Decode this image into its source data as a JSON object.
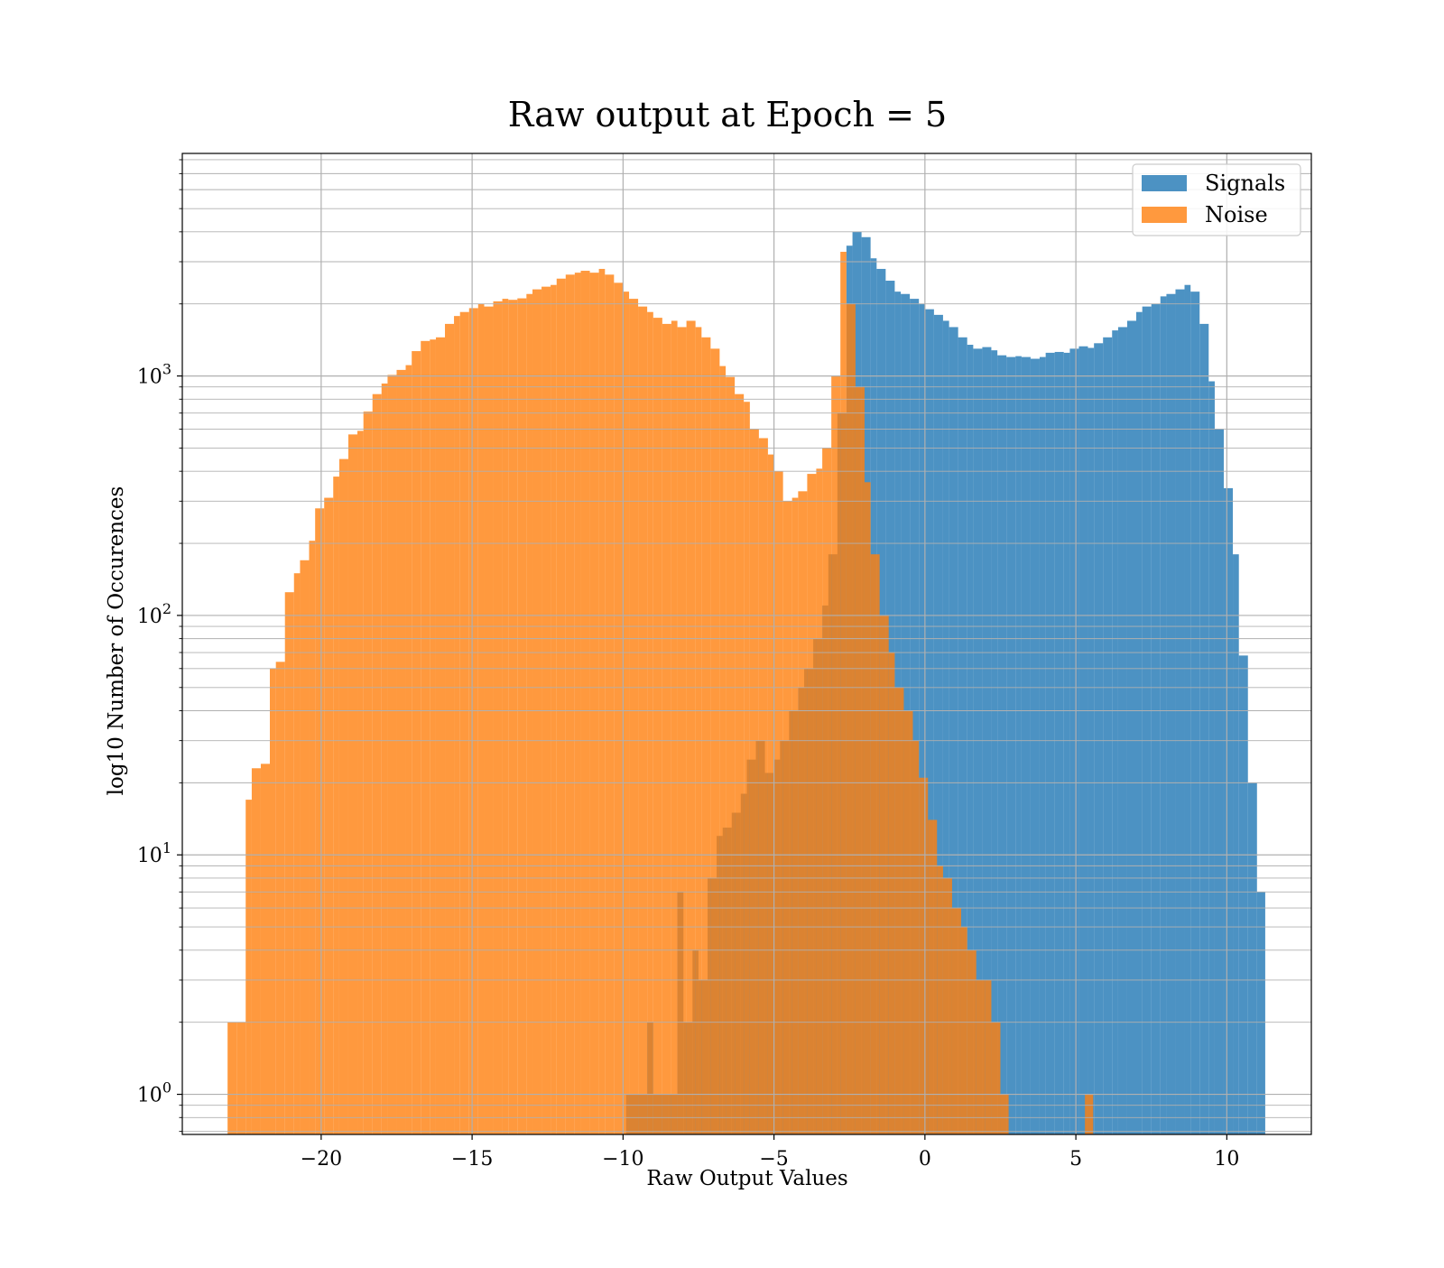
{
  "chart_data": {
    "type": "histogram",
    "title": "Raw output at Epoch = 5",
    "xlabel": "Raw Output Values",
    "ylabel": "log10 Number of Occurences",
    "xlim": [
      -24.6,
      12.8
    ],
    "ylim": [
      0.68,
      8500
    ],
    "yscale": "log",
    "grid": true,
    "grid_minor_y": true,
    "legend_position": "top-right",
    "x_ticks": [
      {
        "value": -20,
        "label": "−20"
      },
      {
        "value": -15,
        "label": "−15"
      },
      {
        "value": -10,
        "label": "−10"
      },
      {
        "value": -5,
        "label": "−5"
      },
      {
        "value": 0,
        "label": "0"
      },
      {
        "value": 5,
        "label": "5"
      },
      {
        "value": 10,
        "label": "10"
      }
    ],
    "y_ticks": [
      {
        "value": 1,
        "base": "10",
        "exp": "0"
      },
      {
        "value": 10,
        "base": "10",
        "exp": "1"
      },
      {
        "value": 100,
        "base": "10",
        "exp": "2"
      },
      {
        "value": 1000,
        "base": "10",
        "exp": "3"
      }
    ],
    "series": [
      {
        "name": "Signals",
        "color": "#1f77b4",
        "opacity": 0.8,
        "bins": [
          [
            -9.9,
            1
          ],
          [
            -9.5,
            1
          ],
          [
            -9.2,
            2
          ],
          [
            -9.0,
            1
          ],
          [
            -8.7,
            1
          ],
          [
            -8.5,
            1
          ],
          [
            -8.2,
            7
          ],
          [
            -8.0,
            2
          ],
          [
            -7.7,
            4
          ],
          [
            -7.5,
            3
          ],
          [
            -7.2,
            8
          ],
          [
            -6.9,
            12
          ],
          [
            -6.7,
            13
          ],
          [
            -6.4,
            15
          ],
          [
            -6.1,
            18
          ],
          [
            -5.9,
            25
          ],
          [
            -5.6,
            30
          ],
          [
            -5.3,
            22
          ],
          [
            -5.0,
            25
          ],
          [
            -4.8,
            30
          ],
          [
            -4.5,
            40
          ],
          [
            -4.2,
            50
          ],
          [
            -4.0,
            60
          ],
          [
            -3.7,
            80
          ],
          [
            -3.4,
            110
          ],
          [
            -3.2,
            180
          ],
          [
            -2.9,
            700
          ],
          [
            -2.6,
            3500
          ],
          [
            -2.4,
            4000
          ],
          [
            -2.1,
            3800
          ],
          [
            -1.8,
            3100
          ],
          [
            -1.6,
            2800
          ],
          [
            -1.3,
            2500
          ],
          [
            -1.0,
            2250
          ],
          [
            -0.8,
            2200
          ],
          [
            -0.5,
            2100
          ],
          [
            -0.2,
            2000
          ],
          [
            0.0,
            1900
          ],
          [
            0.3,
            1800
          ],
          [
            0.6,
            1700
          ],
          [
            0.8,
            1600
          ],
          [
            1.1,
            1450
          ],
          [
            1.4,
            1350
          ],
          [
            1.6,
            1300
          ],
          [
            1.9,
            1320
          ],
          [
            2.2,
            1280
          ],
          [
            2.4,
            1220
          ],
          [
            2.7,
            1200
          ],
          [
            3.0,
            1210
          ],
          [
            3.2,
            1200
          ],
          [
            3.5,
            1180
          ],
          [
            3.8,
            1200
          ],
          [
            4.0,
            1250
          ],
          [
            4.3,
            1260
          ],
          [
            4.6,
            1250
          ],
          [
            4.8,
            1300
          ],
          [
            5.1,
            1330
          ],
          [
            5.4,
            1310
          ],
          [
            5.6,
            1370
          ],
          [
            5.9,
            1450
          ],
          [
            6.2,
            1550
          ],
          [
            6.4,
            1600
          ],
          [
            6.7,
            1700
          ],
          [
            7.0,
            1850
          ],
          [
            7.2,
            1950
          ],
          [
            7.5,
            2000
          ],
          [
            7.8,
            2150
          ],
          [
            8.0,
            2200
          ],
          [
            8.3,
            2300
          ],
          [
            8.6,
            2400
          ],
          [
            8.8,
            2250
          ],
          [
            9.1,
            1650
          ],
          [
            9.4,
            950
          ],
          [
            9.6,
            600
          ],
          [
            9.9,
            340
          ],
          [
            10.2,
            180
          ],
          [
            10.4,
            68
          ],
          [
            10.7,
            20
          ],
          [
            11.0,
            7
          ]
        ]
      },
      {
        "name": "Noise",
        "color": "#ff7f0e",
        "opacity": 0.8,
        "bins": [
          [
            -23.1,
            2
          ],
          [
            -22.8,
            2
          ],
          [
            -22.5,
            17
          ],
          [
            -22.3,
            23
          ],
          [
            -22.0,
            24
          ],
          [
            -21.7,
            60
          ],
          [
            -21.5,
            64
          ],
          [
            -21.2,
            125
          ],
          [
            -20.9,
            150
          ],
          [
            -20.7,
            170
          ],
          [
            -20.4,
            205
          ],
          [
            -20.2,
            280
          ],
          [
            -19.9,
            310
          ],
          [
            -19.6,
            380
          ],
          [
            -19.4,
            450
          ],
          [
            -19.1,
            570
          ],
          [
            -18.8,
            590
          ],
          [
            -18.6,
            710
          ],
          [
            -18.3,
            840
          ],
          [
            -18.0,
            930
          ],
          [
            -17.8,
            1010
          ],
          [
            -17.5,
            1060
          ],
          [
            -17.2,
            1110
          ],
          [
            -17.0,
            1270
          ],
          [
            -16.7,
            1400
          ],
          [
            -16.4,
            1420
          ],
          [
            -16.2,
            1450
          ],
          [
            -15.9,
            1650
          ],
          [
            -15.6,
            1780
          ],
          [
            -15.4,
            1850
          ],
          [
            -15.1,
            1920
          ],
          [
            -14.8,
            2000
          ],
          [
            -14.6,
            1950
          ],
          [
            -14.3,
            2050
          ],
          [
            -14.0,
            2100
          ],
          [
            -13.8,
            2080
          ],
          [
            -13.5,
            2110
          ],
          [
            -13.2,
            2200
          ],
          [
            -13.0,
            2300
          ],
          [
            -12.7,
            2360
          ],
          [
            -12.4,
            2400
          ],
          [
            -12.2,
            2550
          ],
          [
            -11.9,
            2650
          ],
          [
            -11.6,
            2700
          ],
          [
            -11.4,
            2750
          ],
          [
            -11.1,
            2700
          ],
          [
            -10.8,
            2800
          ],
          [
            -10.6,
            2650
          ],
          [
            -10.3,
            2450
          ],
          [
            -10.0,
            2250
          ],
          [
            -9.8,
            2100
          ],
          [
            -9.5,
            1950
          ],
          [
            -9.2,
            1850
          ],
          [
            -9.0,
            1750
          ],
          [
            -8.7,
            1650
          ],
          [
            -8.4,
            1700
          ],
          [
            -8.2,
            1600
          ],
          [
            -7.9,
            1700
          ],
          [
            -7.6,
            1600
          ],
          [
            -7.4,
            1450
          ],
          [
            -7.1,
            1300
          ],
          [
            -6.8,
            1100
          ],
          [
            -6.6,
            990
          ],
          [
            -6.3,
            840
          ],
          [
            -6.0,
            780
          ],
          [
            -5.8,
            600
          ],
          [
            -5.5,
            550
          ],
          [
            -5.2,
            470
          ],
          [
            -5.0,
            400
          ],
          [
            -4.7,
            300
          ],
          [
            -4.4,
            310
          ],
          [
            -4.2,
            330
          ],
          [
            -3.9,
            390
          ],
          [
            -3.6,
            410
          ],
          [
            -3.4,
            500
          ],
          [
            -3.1,
            1000
          ],
          [
            -2.8,
            3300
          ],
          [
            -2.6,
            2000
          ],
          [
            -2.3,
            900
          ],
          [
            -2.0,
            360
          ],
          [
            -1.8,
            180
          ],
          [
            -1.5,
            100
          ],
          [
            -1.2,
            70
          ],
          [
            -1.0,
            50
          ],
          [
            -0.7,
            40
          ],
          [
            -0.4,
            30
          ],
          [
            -0.2,
            21
          ],
          [
            0.1,
            14
          ],
          [
            0.4,
            9
          ],
          [
            0.6,
            8
          ],
          [
            0.9,
            6
          ],
          [
            1.2,
            5
          ],
          [
            1.4,
            4
          ],
          [
            1.7,
            3
          ],
          [
            2.0,
            3
          ],
          [
            2.2,
            2
          ],
          [
            2.5,
            1
          ],
          [
            5.3,
            1
          ]
        ]
      }
    ]
  }
}
